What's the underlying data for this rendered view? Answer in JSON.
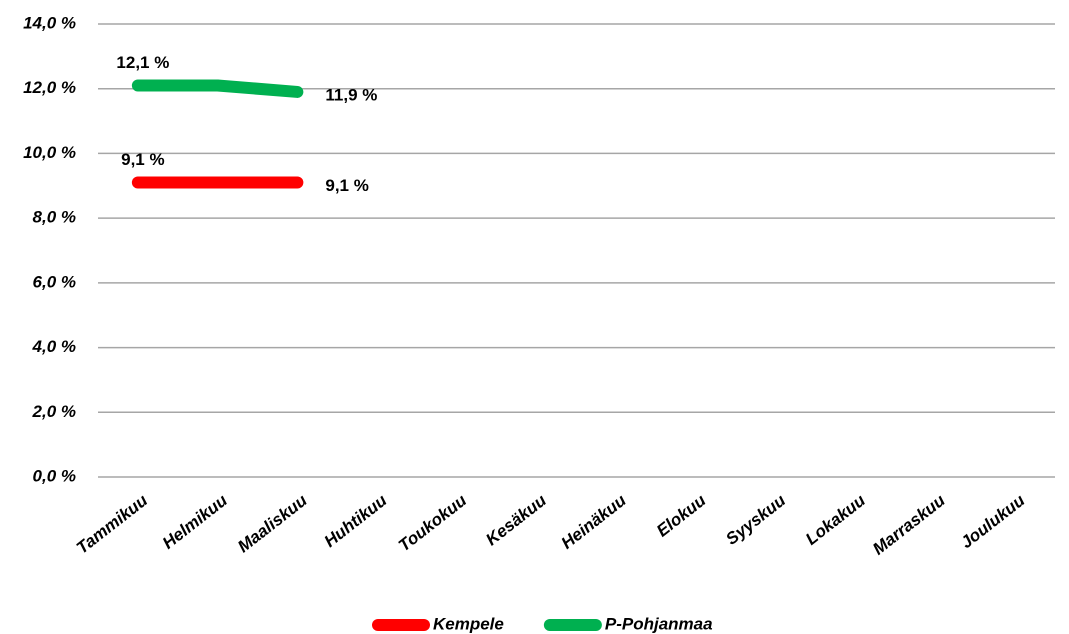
{
  "chart_data": {
    "type": "line",
    "categories": [
      "Tammikuu",
      "Helmikuu",
      "Maaliskuu",
      "Huhtikuu",
      "Toukokuu",
      "Kesäkuu",
      "Heinäkuu",
      "Elokuu",
      "Syyskuu",
      "Lokakuu",
      "Marraskuu",
      "Joulukuu"
    ],
    "series": [
      {
        "name": "Kempele",
        "color": "#ff0000",
        "values": [
          9.1,
          9.1,
          9.1,
          null,
          null,
          null,
          null,
          null,
          null,
          null,
          null,
          null
        ],
        "value_labels": [
          "9,1 %",
          null,
          "9,1 %",
          null,
          null,
          null,
          null,
          null,
          null,
          null,
          null,
          null
        ]
      },
      {
        "name": "P-Pohjanmaa",
        "color": "#00b050",
        "values": [
          12.1,
          12.1,
          11.9,
          null,
          null,
          null,
          null,
          null,
          null,
          null,
          null,
          null
        ],
        "value_labels": [
          "12,1 %",
          null,
          "11,9 %",
          null,
          null,
          null,
          null,
          null,
          null,
          null,
          null,
          null
        ]
      }
    ],
    "ylim": [
      0,
      14
    ],
    "yticks": [
      {
        "value": 0,
        "label": "0,0 %"
      },
      {
        "value": 2,
        "label": "2,0 %"
      },
      {
        "value": 4,
        "label": "4,0 %"
      },
      {
        "value": 6,
        "label": "6,0 %"
      },
      {
        "value": 8,
        "label": "8,0 %"
      },
      {
        "value": 10,
        "label": "10,0 %"
      },
      {
        "value": 12,
        "label": "12,0 %"
      },
      {
        "value": 14,
        "label": "14,0 %"
      }
    ],
    "grid": true,
    "legend": "bottom"
  }
}
